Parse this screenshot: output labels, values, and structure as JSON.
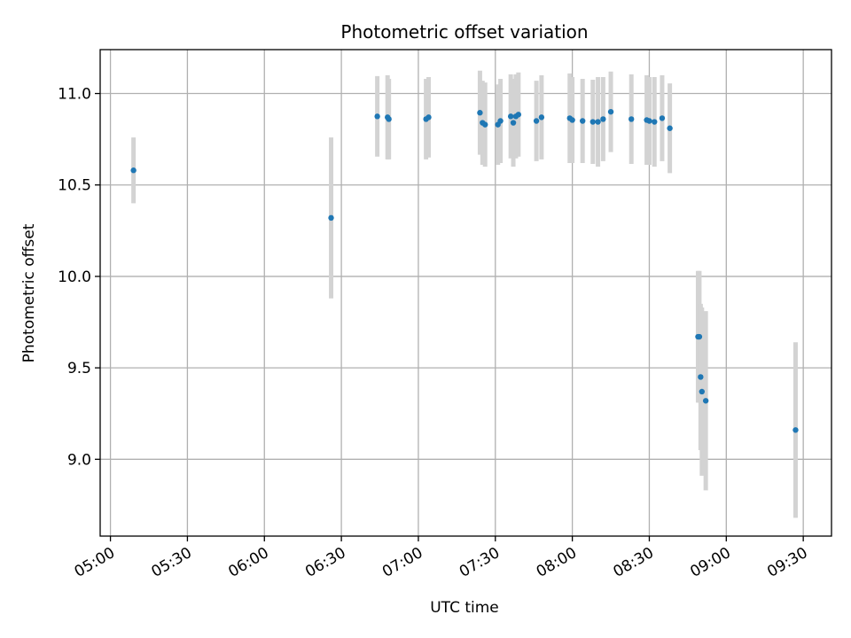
{
  "chart_data": {
    "type": "scatter",
    "title": "Photometric offset variation",
    "xlabel": "UTC time",
    "ylabel": "Photometric offset",
    "x_tick_labels": [
      "05:00",
      "05:30",
      "06:00",
      "06:30",
      "07:00",
      "07:30",
      "08:00",
      "08:30",
      "09:00",
      "09:30"
    ],
    "y_tick_labels": [
      "9.0",
      "9.5",
      "10.0",
      "10.5",
      "11.0"
    ],
    "x_ticks": [
      "05:00",
      "05:30",
      "06:00",
      "06:30",
      "07:00",
      "07:30",
      "08:00",
      "08:30",
      "09:00",
      "09:30"
    ],
    "y_ticks": [
      9.0,
      9.5,
      10.0,
      10.5,
      11.0
    ],
    "xlim": [
      "04:56",
      "09:41"
    ],
    "ylim": [
      8.58,
      11.24
    ],
    "grid": true,
    "colors": {
      "point": "#1f77b4",
      "errorbar": "#d3d3d3",
      "grid": "#b0b0b0"
    },
    "points": [
      {
        "x": "05:09",
        "y": 10.58,
        "yerr": 0.18
      },
      {
        "x": "06:26",
        "y": 10.32,
        "yerr": 0.44
      },
      {
        "x": "06:44",
        "y": 10.875,
        "yerr": 0.22
      },
      {
        "x": "06:48",
        "y": 10.87,
        "yerr": 0.23
      },
      {
        "x": "06:48.5",
        "y": 10.86,
        "yerr": 0.22
      },
      {
        "x": "07:03",
        "y": 10.86,
        "yerr": 0.22
      },
      {
        "x": "07:04",
        "y": 10.87,
        "yerr": 0.22
      },
      {
        "x": "07:24",
        "y": 10.895,
        "yerr": 0.23
      },
      {
        "x": "07:25",
        "y": 10.84,
        "yerr": 0.23
      },
      {
        "x": "07:26",
        "y": 10.83,
        "yerr": 0.23
      },
      {
        "x": "07:31",
        "y": 10.83,
        "yerr": 0.22
      },
      {
        "x": "07:32",
        "y": 10.85,
        "yerr": 0.23
      },
      {
        "x": "07:36",
        "y": 10.875,
        "yerr": 0.23
      },
      {
        "x": "07:37",
        "y": 10.84,
        "yerr": 0.24
      },
      {
        "x": "07:38",
        "y": 10.875,
        "yerr": 0.23
      },
      {
        "x": "07:39",
        "y": 10.885,
        "yerr": 0.23
      },
      {
        "x": "07:46",
        "y": 10.85,
        "yerr": 0.22
      },
      {
        "x": "07:48",
        "y": 10.87,
        "yerr": 0.23
      },
      {
        "x": "07:59",
        "y": 10.865,
        "yerr": 0.245
      },
      {
        "x": "08:00",
        "y": 10.855,
        "yerr": 0.235
      },
      {
        "x": "08:04",
        "y": 10.85,
        "yerr": 0.23
      },
      {
        "x": "08:08",
        "y": 10.845,
        "yerr": 0.23
      },
      {
        "x": "08:10",
        "y": 10.845,
        "yerr": 0.245
      },
      {
        "x": "08:12",
        "y": 10.86,
        "yerr": 0.23
      },
      {
        "x": "08:15",
        "y": 10.9,
        "yerr": 0.22
      },
      {
        "x": "08:23",
        "y": 10.86,
        "yerr": 0.245
      },
      {
        "x": "08:29",
        "y": 10.855,
        "yerr": 0.245
      },
      {
        "x": "08:30",
        "y": 10.85,
        "yerr": 0.24
      },
      {
        "x": "08:32",
        "y": 10.845,
        "yerr": 0.245
      },
      {
        "x": "08:35",
        "y": 10.865,
        "yerr": 0.235
      },
      {
        "x": "08:38",
        "y": 10.81,
        "yerr": 0.245
      },
      {
        "x": "08:49",
        "y": 9.67,
        "yerr": 0.36
      },
      {
        "x": "08:49.5",
        "y": 9.67,
        "yerr": 0.36
      },
      {
        "x": "08:50",
        "y": 9.45,
        "yerr": 0.4
      },
      {
        "x": "08:50.5",
        "y": 9.37,
        "yerr": 0.46
      },
      {
        "x": "08:52",
        "y": 9.32,
        "yerr": 0.49
      },
      {
        "x": "09:27",
        "y": 9.16,
        "yerr": 0.48
      }
    ]
  }
}
